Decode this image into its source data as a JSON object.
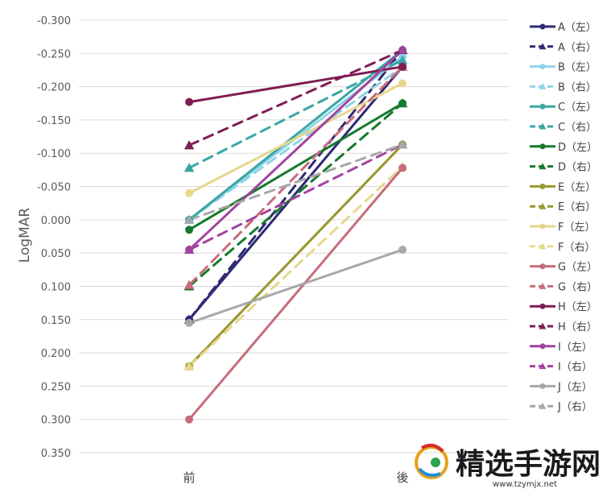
{
  "chart_data": {
    "type": "line",
    "title": "",
    "ylabel": "LogMAR",
    "xlabel": "",
    "categories": [
      "前",
      "後"
    ],
    "y_inverted": true,
    "ylim": [
      -0.3,
      0.35
    ],
    "yticks": [
      -0.3,
      -0.25,
      -0.2,
      -0.15,
      -0.1,
      -0.05,
      0.0,
      0.05,
      0.1,
      0.15,
      0.2,
      0.25,
      0.3,
      0.35
    ],
    "ytick_labels": [
      "-0.300",
      "-0.250",
      "-0.200",
      "-0.150",
      "-0.100",
      "-0.050",
      "0.000",
      "0.050",
      "0.100",
      "0.150",
      "0.200",
      "0.250",
      "0.300",
      "0.350"
    ],
    "grid": true,
    "legend_position": "right",
    "series": [
      {
        "name": "A（左）",
        "values": [
          0.15,
          -0.23
        ],
        "color": "#2E2A74",
        "dash": false,
        "marker": "circle"
      },
      {
        "name": "A（右）",
        "values": [
          0.15,
          -0.255
        ],
        "color": "#2E2A74",
        "dash": true,
        "marker": "triangle"
      },
      {
        "name": "B（左）",
        "values": [
          0.0,
          -0.245
        ],
        "color": "#8FD3E8",
        "dash": false,
        "marker": "circle"
      },
      {
        "name": "B（右）",
        "values": [
          0.0,
          -0.23
        ],
        "color": "#8FD3E8",
        "dash": true,
        "marker": "triangle"
      },
      {
        "name": "C（左）",
        "values": [
          0.0,
          -0.255
        ],
        "color": "#3AA6A3",
        "dash": false,
        "marker": "circle"
      },
      {
        "name": "C（右）",
        "values": [
          -0.078,
          -0.24
        ],
        "color": "#3AA6A3",
        "dash": true,
        "marker": "triangle"
      },
      {
        "name": "D（左）",
        "values": [
          0.015,
          -0.175
        ],
        "color": "#157A2C",
        "dash": false,
        "marker": "circle"
      },
      {
        "name": "D（右）",
        "values": [
          0.1,
          -0.175
        ],
        "color": "#157A2C",
        "dash": true,
        "marker": "triangle"
      },
      {
        "name": "E（左）",
        "values": [
          0.22,
          -0.113
        ],
        "color": "#9A982F",
        "dash": false,
        "marker": "circle"
      },
      {
        "name": "E（右）",
        "values": [
          0.22,
          -0.113
        ],
        "color": "#9A982F",
        "dash": true,
        "marker": "triangle"
      },
      {
        "name": "F（左）",
        "values": [
          -0.04,
          -0.205
        ],
        "color": "#E6D78E",
        "dash": false,
        "marker": "circle"
      },
      {
        "name": "F（右）",
        "values": [
          0.22,
          -0.08
        ],
        "color": "#E6D78E",
        "dash": true,
        "marker": "triangle"
      },
      {
        "name": "G（左）",
        "values": [
          0.3,
          -0.078
        ],
        "color": "#C96B7C",
        "dash": false,
        "marker": "circle"
      },
      {
        "name": "G（右）",
        "values": [
          0.098,
          -0.23
        ],
        "color": "#C96B7C",
        "dash": true,
        "marker": "triangle"
      },
      {
        "name": "H（左）",
        "values": [
          -0.177,
          -0.23
        ],
        "color": "#7E1D55",
        "dash": false,
        "marker": "circle"
      },
      {
        "name": "H（右）",
        "values": [
          -0.112,
          -0.255
        ],
        "color": "#7E1D55",
        "dash": true,
        "marker": "triangle"
      },
      {
        "name": "I（左）",
        "values": [
          0.045,
          -0.255
        ],
        "color": "#A144A0",
        "dash": false,
        "marker": "circle"
      },
      {
        "name": "I（右）",
        "values": [
          0.045,
          -0.113
        ],
        "color": "#A144A0",
        "dash": true,
        "marker": "triangle"
      },
      {
        "name": "J（左）",
        "values": [
          0.155,
          0.045
        ],
        "color": "#A8A8A8",
        "dash": false,
        "marker": "circle"
      },
      {
        "name": "J（右）",
        "values": [
          0.0,
          -0.113
        ],
        "color": "#A8A8A8",
        "dash": true,
        "marker": "triangle"
      }
    ]
  },
  "watermark": {
    "text": "精选手游网",
    "url": "www.tzymjx.net"
  }
}
